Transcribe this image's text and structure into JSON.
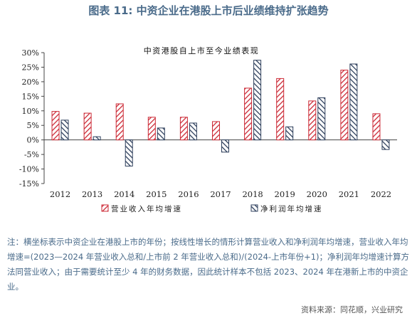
{
  "figure": {
    "title": "图表 11: 中资企业在港股上市后业绩维持扩张趋势",
    "note_label": "注：",
    "note_text": "横坐标表示中资企业在港股上市的年份；按线性增长的情形计算营业收入和净利润年均增速，营业收入年均增速=(2023—2024 年营业收入总和/上市前 2 年营业收入总和)/(2024-上市年份+1)；净利润年均增速计算方法同营业收入；由于需要统计至少 4 年的财务数据，因此统计样本不包括 2023、2024 年在港新上市的中资企业。",
    "source": "资料来源：同花顺，兴业研究"
  },
  "colors": {
    "title": "#4a6b8a",
    "note": "#4a6b8a",
    "revenue_stroke": "#cc2a36",
    "profit_stroke": "#2e3f5c",
    "axis": "#444444"
  },
  "chart_data": {
    "type": "bar",
    "title": "中资港股自上市至今业绩表现",
    "xlabel": "",
    "ylabel": "",
    "ylim": [
      -15,
      30
    ],
    "yticks": [
      "30%",
      "25%",
      "20%",
      "15%",
      "10%",
      "5%",
      "0%",
      "-5%",
      "-10%",
      "-15%"
    ],
    "ytick_values": [
      30,
      25,
      20,
      15,
      10,
      5,
      0,
      -5,
      -10,
      -15
    ],
    "grid": false,
    "legend_position": "bottom",
    "categories": [
      "2012",
      "2013",
      "2014",
      "2015",
      "2016",
      "2017",
      "2018",
      "2019",
      "2020",
      "2021",
      "2022"
    ],
    "series": [
      {
        "name": "营业收入年均增速",
        "pattern": "red-hatch",
        "values": [
          9.8,
          9.2,
          12.4,
          7.8,
          7.8,
          6.3,
          17.8,
          21.1,
          13.4,
          24.0,
          9.0
        ]
      },
      {
        "name": "净利润年均增速",
        "pattern": "navy-hatch",
        "values": [
          6.8,
          1.1,
          -9.0,
          4.1,
          5.8,
          -4.2,
          27.4,
          4.5,
          14.5,
          26.1,
          -3.3
        ]
      }
    ]
  }
}
